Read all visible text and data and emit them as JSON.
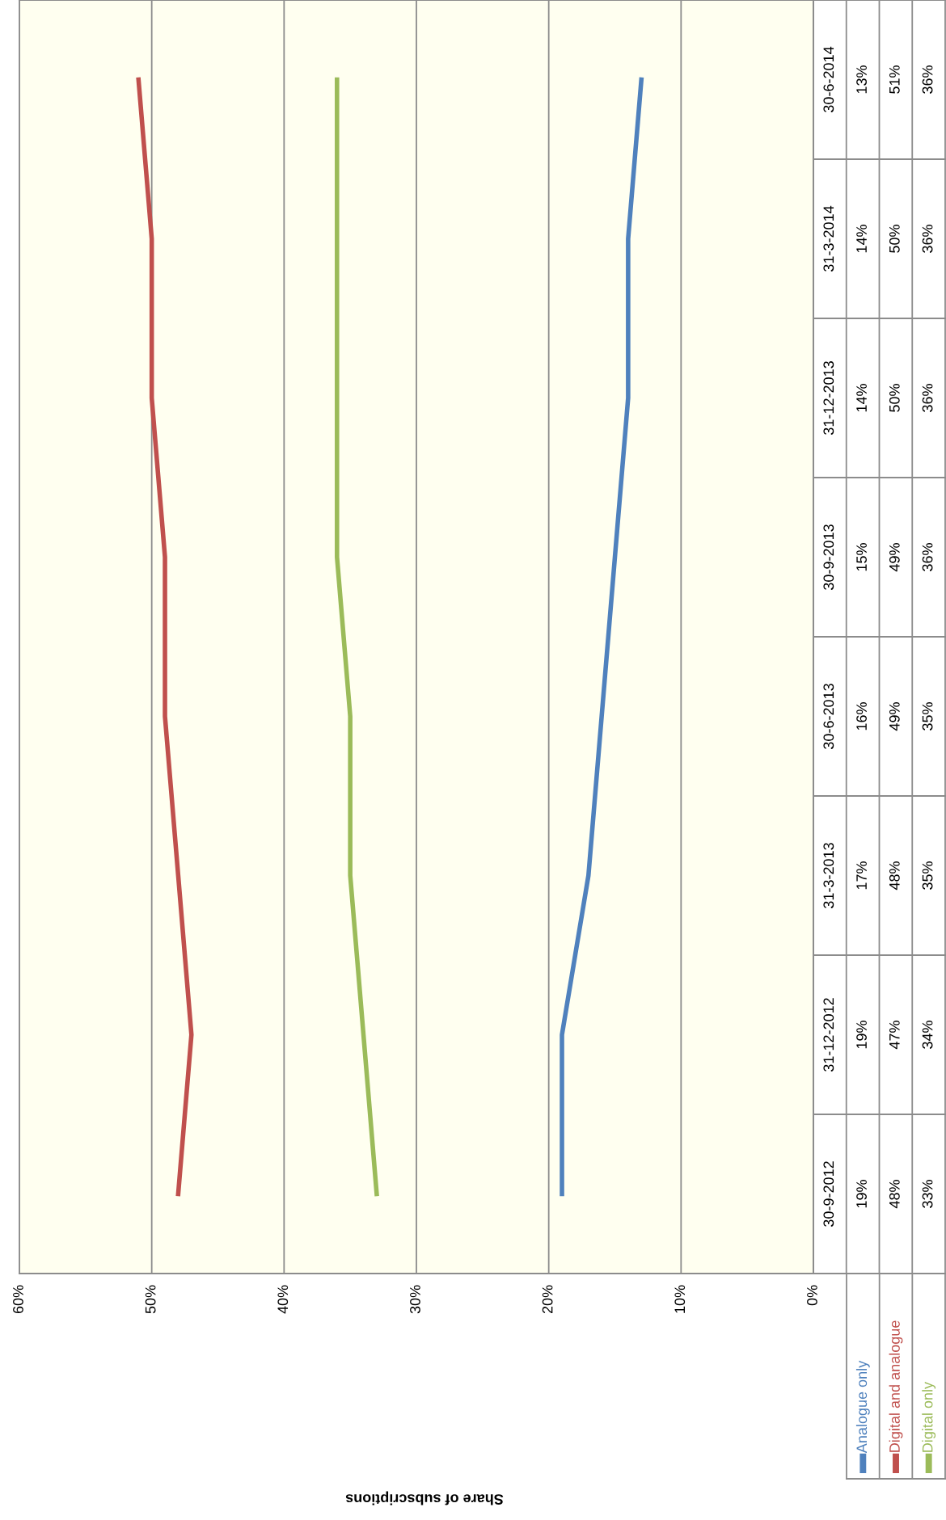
{
  "chart_data": {
    "type": "line",
    "annotations": [
      "Share of subscriptions"
    ],
    "categories": [
      "30-6-2014",
      "31-3-2014",
      "31-12-2013",
      "30-9-2013",
      "30-6-2013",
      "31-3-2013",
      "31-12-2012",
      "30-9-2012"
    ],
    "series": [
      {
        "name": "Analogue only",
        "color": "#4f81bd",
        "values": [
          13,
          14,
          14,
          15,
          16,
          17,
          19,
          19
        ],
        "value_labels": [
          "13%",
          "14%",
          "14%",
          "15%",
          "16%",
          "17%",
          "19%",
          "19%"
        ]
      },
      {
        "name": "Digital and analogue",
        "color": "#c0504d",
        "values": [
          51,
          50,
          50,
          49,
          49,
          48,
          47,
          48
        ],
        "value_labels": [
          "51%",
          "50%",
          "50%",
          "49%",
          "49%",
          "48%",
          "47%",
          "48%"
        ]
      },
      {
        "name": "Digital only",
        "color": "#9bbb59",
        "values": [
          36,
          36,
          36,
          36,
          35,
          35,
          34,
          33
        ],
        "value_labels": [
          "36%",
          "36%",
          "36%",
          "36%",
          "35%",
          "35%",
          "34%",
          "33%"
        ]
      }
    ],
    "orientation": "horizontal",
    "xlim": [
      60,
      0
    ],
    "xticks": [
      {
        "value": 0,
        "label": "0%"
      },
      {
        "value": 10,
        "label": "10%"
      },
      {
        "value": 20,
        "label": "20%"
      },
      {
        "value": 30,
        "label": "30%"
      },
      {
        "value": 40,
        "label": "40%"
      },
      {
        "value": 50,
        "label": "50%"
      },
      {
        "value": 60,
        "label": "60%"
      }
    ],
    "grid": "x",
    "marker": "none",
    "line_style": "solid"
  }
}
